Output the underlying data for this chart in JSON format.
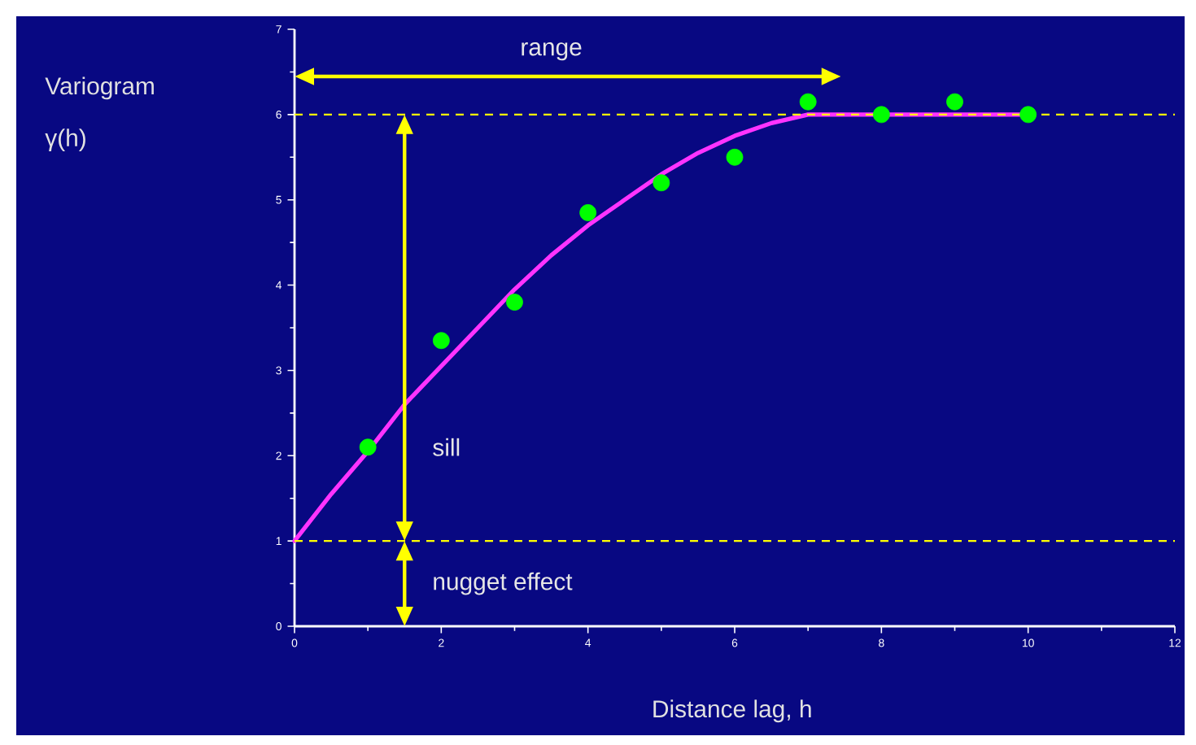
{
  "chart_data": {
    "type": "scatter",
    "xlabel": "Distance lag, h",
    "ylabel": "Variogram γ(h)",
    "xlim": [
      0,
      12
    ],
    "ylim": [
      0,
      7
    ],
    "xticks": [
      0,
      2,
      4,
      6,
      8,
      10,
      12
    ],
    "yticks": [
      0,
      1,
      2,
      3,
      4,
      5,
      6,
      7
    ],
    "grid": false,
    "series": [
      {
        "type": "line",
        "color": "#ff33ff",
        "marker": "none",
        "x": [
          0,
          0.5,
          1,
          1.5,
          2,
          2.5,
          3,
          3.5,
          4,
          4.5,
          5,
          5.5,
          6,
          6.5,
          7,
          10
        ],
        "values": [
          1,
          1.55,
          2.05,
          2.6,
          3.05,
          3.5,
          3.95,
          4.35,
          4.7,
          5.0,
          5.3,
          5.55,
          5.75,
          5.9,
          6,
          6
        ]
      },
      {
        "color": "#00ff00",
        "marker": "circle",
        "x": [
          1,
          2,
          3,
          4,
          5,
          6,
          7,
          8,
          9,
          10
        ],
        "values": [
          2.1,
          3.35,
          3.8,
          4.85,
          5.2,
          5.5,
          6.15,
          6.0,
          6.15,
          6.0
        ]
      }
    ],
    "ref_lines": [
      {
        "axis": "y",
        "value": 6,
        "color": "#ffff00",
        "line_style": "dashed"
      },
      {
        "axis": "y",
        "value": 1,
        "color": "#ffff00",
        "line_style": "dashed"
      }
    ],
    "annotations": [
      "range",
      "sill",
      "nugget effect"
    ]
  }
}
